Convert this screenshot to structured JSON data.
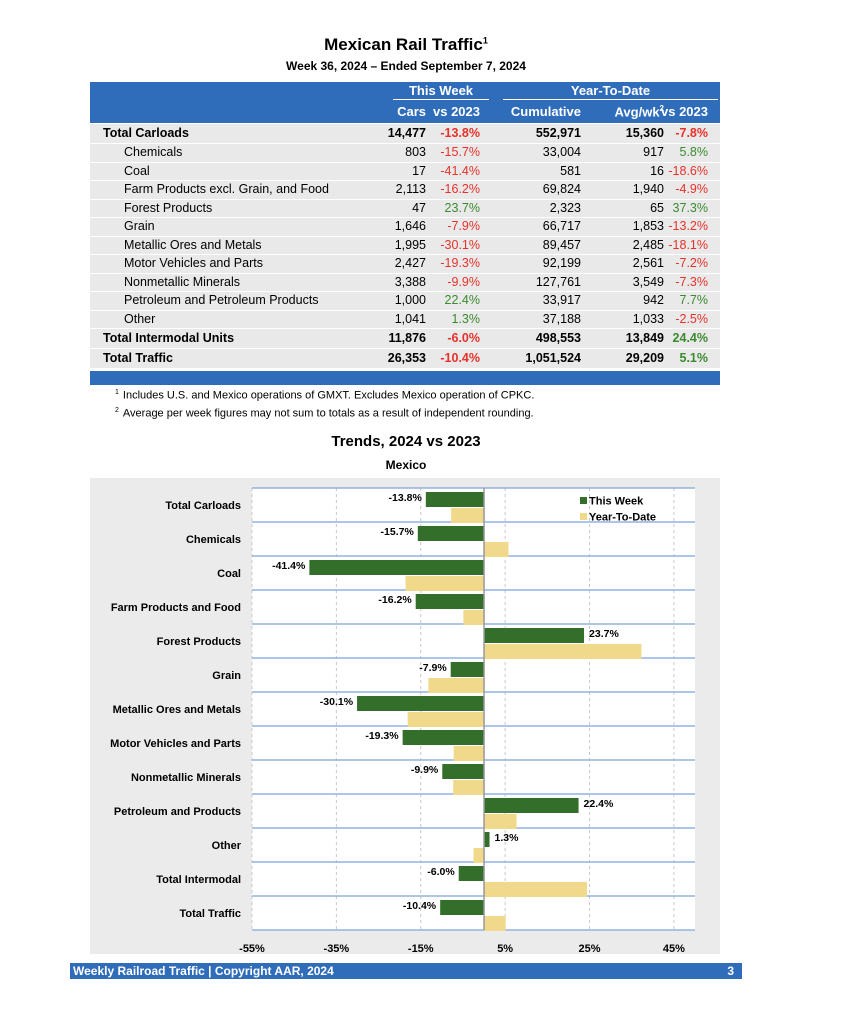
{
  "header": {
    "title": "Mexican Rail Traffic",
    "title_sup": "1",
    "subtitle": "Week 36, 2024 – Ended September 7, 2024"
  },
  "table": {
    "group_this_week": "This Week",
    "group_ytd": "Year-To-Date",
    "columns": [
      "Cars",
      "vs 2023",
      "Cumulative",
      "Avg/wk",
      "vs 2023"
    ],
    "avg_sup": "2",
    "rows": [
      {
        "label": "Total Carloads",
        "total": true,
        "cars": "14,477",
        "vs": "-13.8%",
        "cum": "552,971",
        "avg": "15,360",
        "ytd_vs": "-7.8%"
      },
      {
        "label": "Chemicals",
        "cars": "803",
        "vs": "-15.7%",
        "cum": "33,004",
        "avg": "917",
        "ytd_vs": "5.8%"
      },
      {
        "label": "Coal",
        "cars": "17",
        "vs": "-41.4%",
        "cum": "581",
        "avg": "16",
        "ytd_vs": "-18.6%"
      },
      {
        "label": "Farm Products excl. Grain, and Food",
        "cars": "2,113",
        "vs": "-16.2%",
        "cum": "69,824",
        "avg": "1,940",
        "ytd_vs": "-4.9%"
      },
      {
        "label": "Forest Products",
        "cars": "47",
        "vs": "23.7%",
        "cum": "2,323",
        "avg": "65",
        "ytd_vs": "37.3%"
      },
      {
        "label": "Grain",
        "cars": "1,646",
        "vs": "-7.9%",
        "cum": "66,717",
        "avg": "1,853",
        "ytd_vs": "-13.2%"
      },
      {
        "label": "Metallic Ores and Metals",
        "cars": "1,995",
        "vs": "-30.1%",
        "cum": "89,457",
        "avg": "2,485",
        "ytd_vs": "-18.1%"
      },
      {
        "label": "Motor Vehicles and Parts",
        "cars": "2,427",
        "vs": "-19.3%",
        "cum": "92,199",
        "avg": "2,561",
        "ytd_vs": "-7.2%"
      },
      {
        "label": "Nonmetallic Minerals",
        "cars": "3,388",
        "vs": "-9.9%",
        "cum": "127,761",
        "avg": "3,549",
        "ytd_vs": "-7.3%"
      },
      {
        "label": "Petroleum and Petroleum Products",
        "cars": "1,000",
        "vs": "22.4%",
        "cum": "33,917",
        "avg": "942",
        "ytd_vs": "7.7%"
      },
      {
        "label": "Other",
        "cars": "1,041",
        "vs": "1.3%",
        "cum": "37,188",
        "avg": "1,033",
        "ytd_vs": "-2.5%"
      },
      {
        "label": "Total Intermodal Units",
        "total": true,
        "cars": "11,876",
        "vs": "-6.0%",
        "cum": "498,553",
        "avg": "13,849",
        "ytd_vs": "24.4%"
      },
      {
        "label": "Total Traffic",
        "total": true,
        "cars": "26,353",
        "vs": "-10.4%",
        "cum": "1,051,524",
        "avg": "29,209",
        "ytd_vs": "5.1%"
      }
    ]
  },
  "footnotes": [
    {
      "sup": "1",
      "text": "Includes U.S. and Mexico operations of GMXT. Excludes Mexico operation of CPKC."
    },
    {
      "sup": "2",
      "text": "Average per week figures may not sum to totals as a result of independent rounding."
    }
  ],
  "chart_data": {
    "type": "bar",
    "orientation": "horizontal",
    "title": "Trends, 2024 vs 2023",
    "subtitle": "Mexico",
    "categories": [
      "Total Carloads",
      "Chemicals",
      "Coal",
      "Farm Products and Food",
      "Forest Products",
      "Grain",
      "Metallic Ores and Metals",
      "Motor Vehicles and Parts",
      "Nonmetallic Minerals",
      "Petroleum and Products",
      "Other",
      "Total Intermodal",
      "Total Traffic"
    ],
    "series": [
      {
        "name": "This Week",
        "color": "#336e2b",
        "values": [
          -13.8,
          -15.7,
          -41.4,
          -16.2,
          23.7,
          -7.9,
          -30.1,
          -19.3,
          -9.9,
          22.4,
          1.3,
          -6.0,
          -10.4
        ],
        "labels": [
          "-13.8%",
          "-15.7%",
          "-41.4%",
          "-16.2%",
          "23.7%",
          "-7.9%",
          "-30.1%",
          "-19.3%",
          "-9.9%",
          "22.4%",
          "1.3%",
          "-6.0%",
          "-10.4%"
        ]
      },
      {
        "name": "Year-To-Date",
        "color": "#f0d98a",
        "values": [
          -7.8,
          5.8,
          -18.6,
          -4.9,
          37.3,
          -13.2,
          -18.1,
          -7.2,
          -7.3,
          7.7,
          -2.5,
          24.4,
          5.1
        ]
      }
    ],
    "xticks": [
      "-55%",
      "-35%",
      "-15%",
      "5%",
      "25%",
      "45%"
    ],
    "xtick_values": [
      -55,
      -35,
      -15,
      5,
      25,
      45
    ],
    "xlim": [
      -55,
      50
    ],
    "grid": true,
    "legend": "top-right"
  },
  "footer": {
    "left": "Weekly Railroad Traffic | Copyright AAR, 2024",
    "page": "3"
  }
}
